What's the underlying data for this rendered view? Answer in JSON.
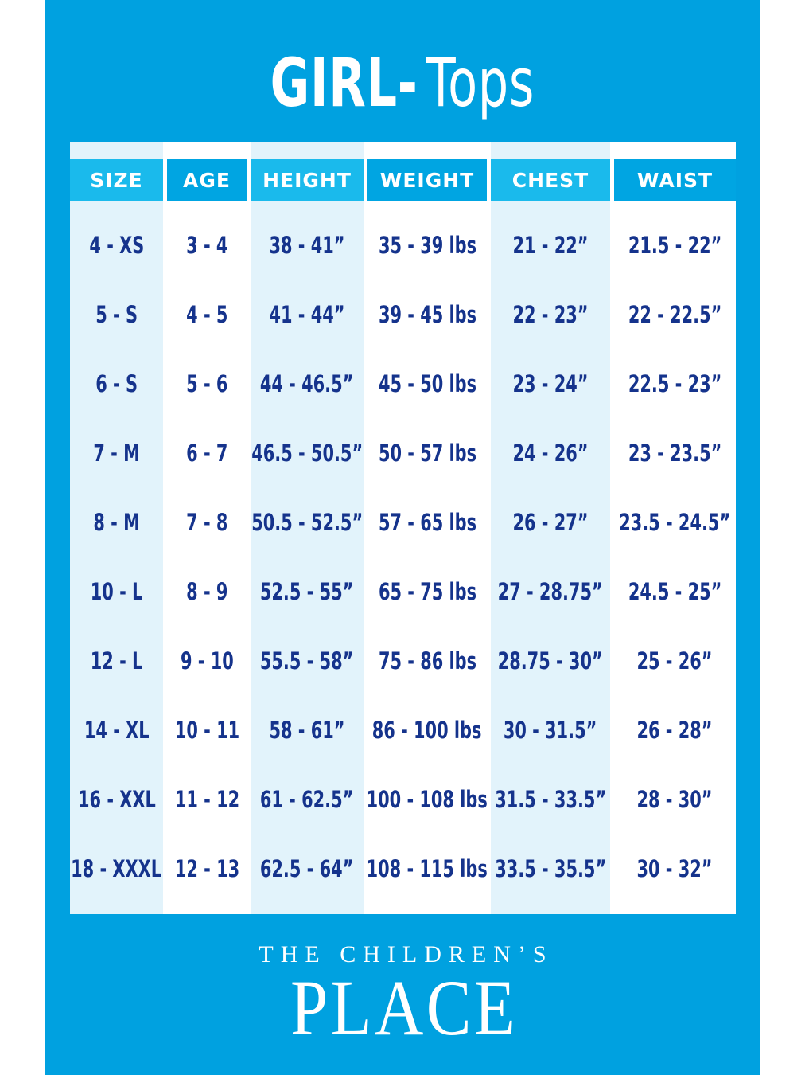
{
  "title": {
    "category": "GIRL-",
    "garment": "Tops"
  },
  "chart_data": {
    "type": "table",
    "title": "GIRL- Tops",
    "columns": [
      "SIZE",
      "AGE",
      "HEIGHT",
      "WEIGHT",
      "CHEST",
      "WAIST"
    ],
    "rows": [
      [
        "4 - XS",
        "3 - 4",
        "38 - 41”",
        "35 - 39 lbs",
        "21 - 22”",
        "21.5 - 22”"
      ],
      [
        "5 - S",
        "4 - 5",
        "41 - 44”",
        "39 - 45 lbs",
        "22 - 23”",
        "22 - 22.5”"
      ],
      [
        "6 - S",
        "5 - 6",
        "44 - 46.5”",
        "45 - 50 lbs",
        "23 - 24”",
        "22.5 - 23”"
      ],
      [
        "7 - M",
        "6 - 7",
        "46.5 - 50.5”",
        "50 - 57 lbs",
        "24 - 26”",
        "23 - 23.5”"
      ],
      [
        "8 - M",
        "7 - 8",
        "50.5 - 52.5”",
        "57 - 65 lbs",
        "26 - 27”",
        "23.5 - 24.5”"
      ],
      [
        "10 - L",
        "8 - 9",
        "52.5 - 55”",
        "65 - 75 lbs",
        "27 - 28.75”",
        "24.5 - 25”"
      ],
      [
        "12 - L",
        "9 - 10",
        "55.5 - 58”",
        "75 - 86 lbs",
        "28.75 - 30”",
        "25 - 26”"
      ],
      [
        "14 - XL",
        "10 - 11",
        "58 - 61”",
        "86 - 100 lbs",
        "30 - 31.5”",
        "26 - 28”"
      ],
      [
        "16 - XXL",
        "11 - 12",
        "61 - 62.5”",
        "100 - 108 lbs",
        "31.5 - 33.5”",
        "28 - 30”"
      ],
      [
        "18 - XXXL",
        "12 - 13",
        "62.5 - 64”",
        "108 - 115 lbs",
        "33.5 - 35.5”",
        "30 - 32”"
      ]
    ]
  },
  "footer": {
    "line1": "THE CHILDREN’S",
    "line2": "PLACE"
  },
  "colors": {
    "panel_blue": "#00A1E0",
    "header_cell_light": "#1ABAEC",
    "header_cell_dark": "#00A5E2",
    "column_tint": "#E2F3FB",
    "column_white": "#FFFFFF",
    "text_navy": "#15338C",
    "text_white": "#FFFFFF"
  }
}
